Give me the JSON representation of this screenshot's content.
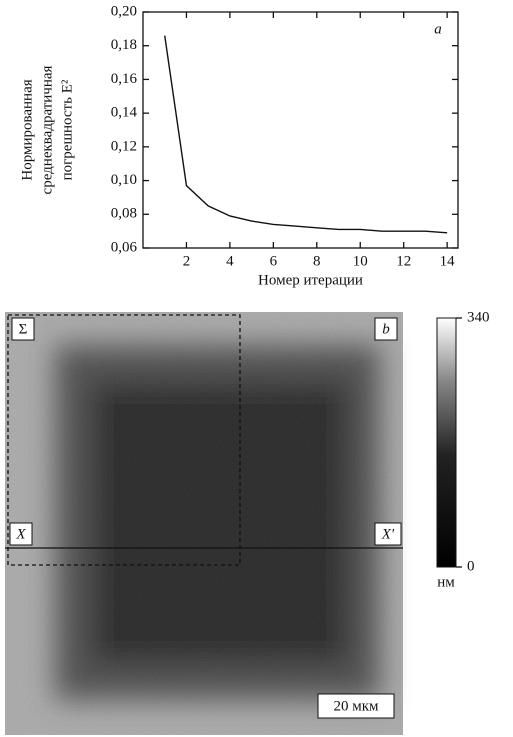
{
  "chart_data": {
    "type": "line",
    "panel_label": "a",
    "y_label": [
      "Нормированная",
      "среднеквадратичная",
      "погрешность E²"
    ],
    "x_label": "Номер итерации",
    "x": [
      1,
      2,
      3,
      4,
      5,
      6,
      7,
      8,
      9,
      10,
      11,
      12,
      13,
      14
    ],
    "series": [
      {
        "color": "#111111",
        "values": [
          0.186,
          0.097,
          0.085,
          0.079,
          0.076,
          0.074,
          0.073,
          0.072,
          0.071,
          0.071,
          0.07,
          0.07,
          0.07,
          0.069
        ]
      }
    ],
    "xlim": [
      0,
      14.5
    ],
    "xticks": [
      2,
      4,
      6,
      8,
      10,
      12,
      14
    ],
    "ylim": [
      0.06,
      0.2
    ],
    "yticks": [
      {
        "value": 0.06,
        "label": "0,06"
      },
      {
        "value": 0.08,
        "label": "0,08"
      },
      {
        "value": 0.1,
        "label": "0,10"
      },
      {
        "value": 0.12,
        "label": "0,12"
      },
      {
        "value": 0.14,
        "label": "0,14"
      },
      {
        "value": 0.16,
        "label": "0,16"
      },
      {
        "value": 0.18,
        "label": "0,18"
      },
      {
        "value": 0.2,
        "label": "0,20"
      }
    ]
  },
  "image": {
    "panel_label": "b",
    "region_label": "Σ",
    "line_left": "X",
    "line_right": "X′",
    "scale_bar": "20 мкм"
  },
  "colorbar": {
    "lim": [
      0,
      340
    ],
    "ticks": [
      0,
      340
    ],
    "unit": "нм"
  }
}
